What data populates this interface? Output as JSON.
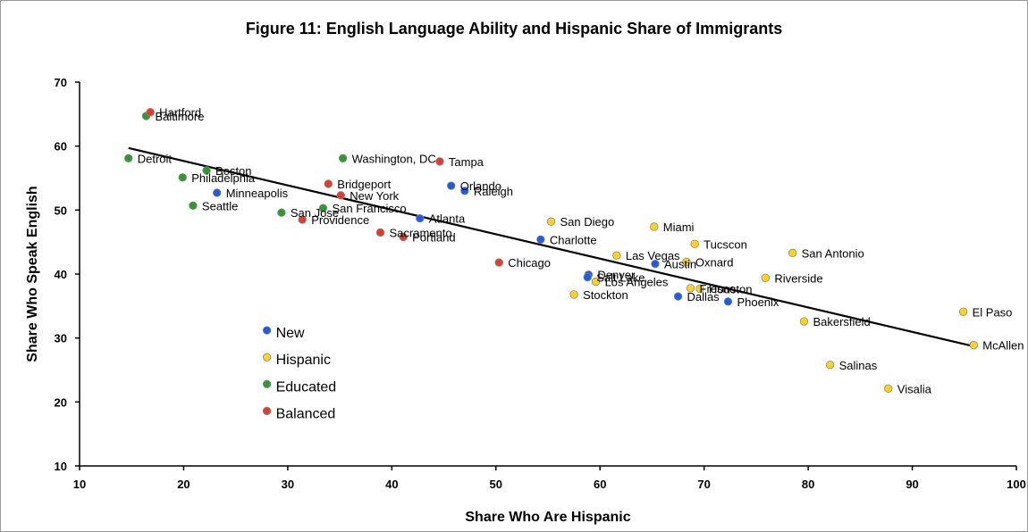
{
  "chart_data": {
    "type": "scatter",
    "title": "Figure 11:  English Language Ability and Hispanic Share of Immigrants",
    "xlabel": "Share Who Are Hispanic",
    "ylabel": "Share Who Speak English",
    "xlim": [
      10,
      100
    ],
    "ylim": [
      10,
      70
    ],
    "xticks": [
      10,
      20,
      30,
      40,
      50,
      60,
      70,
      80,
      90,
      100
    ],
    "yticks": [
      10,
      20,
      30,
      40,
      50,
      60,
      70
    ],
    "grid": false,
    "legend_position": "left",
    "colors": {
      "New": "#1f5bea",
      "Hispanic": "#ffd21f",
      "Educated": "#2e9a2e",
      "Balanced": "#e33a2a"
    },
    "series": [
      {
        "name": "New",
        "points": [
          {
            "label": "Minneapolis",
            "x": 23.2,
            "y": 52.7
          },
          {
            "label": "Atlanta",
            "x": 42.7,
            "y": 48.7
          },
          {
            "label": "Orlando",
            "x": 45.7,
            "y": 53.8
          },
          {
            "label": "Raleigh",
            "x": 47.0,
            "y": 53.0
          },
          {
            "label": "Charlotte",
            "x": 54.3,
            "y": 45.4
          },
          {
            "label": "Denver",
            "x": 58.9,
            "y": 39.9
          },
          {
            "label": "Salt Lake",
            "x": 58.8,
            "y": 39.5
          },
          {
            "label": "Austin",
            "x": 65.3,
            "y": 41.6
          },
          {
            "label": "Dallas",
            "x": 67.5,
            "y": 36.5
          },
          {
            "label": "Phoenix",
            "x": 72.3,
            "y": 35.7
          }
        ]
      },
      {
        "name": "Hispanic",
        "points": [
          {
            "label": "San Diego",
            "x": 55.3,
            "y": 48.2
          },
          {
            "label": "Miami",
            "x": 65.2,
            "y": 47.4
          },
          {
            "label": "Tucscon",
            "x": 69.1,
            "y": 44.7
          },
          {
            "label": "San Antonio",
            "x": 78.5,
            "y": 43.3
          },
          {
            "label": "Las Vegas",
            "x": 61.6,
            "y": 42.9
          },
          {
            "label": "Oxnard",
            "x": 68.3,
            "y": 41.9
          },
          {
            "label": "Riverside",
            "x": 75.9,
            "y": 39.4
          },
          {
            "label": "Los Angeles",
            "x": 59.6,
            "y": 38.8
          },
          {
            "label": "Stockton",
            "x": 57.5,
            "y": 36.8
          },
          {
            "label": "Fresno",
            "x": 68.7,
            "y": 37.8
          },
          {
            "label": "Houston",
            "x": 69.6,
            "y": 37.7
          },
          {
            "label": "El Paso",
            "x": 94.9,
            "y": 34.1
          },
          {
            "label": "Bakersfield",
            "x": 79.6,
            "y": 32.6
          },
          {
            "label": "McAllen",
            "x": 95.9,
            "y": 28.9
          },
          {
            "label": "Salinas",
            "x": 82.1,
            "y": 25.8
          },
          {
            "label": "Visalia",
            "x": 87.7,
            "y": 22.1
          }
        ]
      },
      {
        "name": "Educated",
        "points": [
          {
            "label": "Baltimore",
            "x": 16.4,
            "y": 64.7
          },
          {
            "label": "Detroit",
            "x": 14.7,
            "y": 58.1
          },
          {
            "label": "Boston",
            "x": 22.2,
            "y": 56.2
          },
          {
            "label": "Philadelphia",
            "x": 19.9,
            "y": 55.1
          },
          {
            "label": "Seattle",
            "x": 20.9,
            "y": 50.7
          },
          {
            "label": "Washington, DC",
            "x": 35.3,
            "y": 58.1
          },
          {
            "label": "San Francisco",
            "x": 33.4,
            "y": 50.3
          },
          {
            "label": "San Jose",
            "x": 29.4,
            "y": 49.6
          }
        ]
      },
      {
        "name": "Balanced",
        "points": [
          {
            "label": "Hartford",
            "x": 16.8,
            "y": 65.3
          },
          {
            "label": "Tampa",
            "x": 44.6,
            "y": 57.6
          },
          {
            "label": "Bridgeport",
            "x": 33.9,
            "y": 54.1
          },
          {
            "label": "New York",
            "x": 35.1,
            "y": 52.3
          },
          {
            "label": "Providence",
            "x": 31.4,
            "y": 48.5
          },
          {
            "label": "Sacramento",
            "x": 38.9,
            "y": 46.5
          },
          {
            "label": "Portland",
            "x": 41.1,
            "y": 45.8
          },
          {
            "label": "Chicago",
            "x": 50.3,
            "y": 41.8
          }
        ]
      }
    ],
    "trendline": {
      "type": "linear",
      "x": [
        14.7,
        95.9
      ],
      "y": [
        59.7,
        28.7
      ]
    }
  },
  "legend": [
    {
      "name": "New"
    },
    {
      "name": "Hispanic"
    },
    {
      "name": "Educated"
    },
    {
      "name": "Balanced"
    }
  ]
}
